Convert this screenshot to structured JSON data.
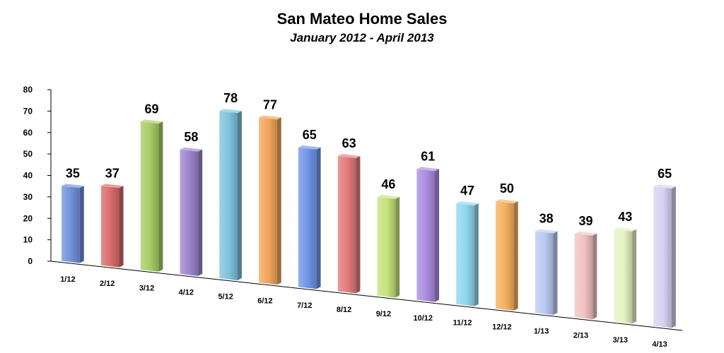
{
  "chart_data": {
    "type": "bar",
    "title": "San Mateo Home Sales",
    "subtitle": "January 2012 - April 2013",
    "xlabel": "",
    "ylabel": "",
    "ylim": [
      0,
      80
    ],
    "y_ticks": [
      "0",
      "10",
      "20",
      "30",
      "40",
      "50",
      "60",
      "70",
      "80"
    ],
    "categories": [
      "1/12",
      "2/12",
      "3/12",
      "4/12",
      "5/12",
      "6/12",
      "7/12",
      "8/12",
      "9/12",
      "10/12",
      "11/12",
      "12/12",
      "1/13",
      "2/13",
      "3/13",
      "4/13"
    ],
    "values": [
      35,
      37,
      69,
      58,
      78,
      77,
      65,
      63,
      46,
      61,
      47,
      50,
      38,
      39,
      43,
      65
    ],
    "grid": false,
    "legend": "none",
    "style": "3d-perspective",
    "colors": [
      "#6f8fd8",
      "#d86a6a",
      "#a6cc63",
      "#9c82cc",
      "#7cc2dc",
      "#f0a35a",
      "#6f93e6",
      "#e27a7a",
      "#c4e27a",
      "#a98be0",
      "#8fd6ee",
      "#f5b05e",
      "#b9c9f3",
      "#f1c1c1",
      "#e6f2c2",
      "#d7d1f2"
    ]
  }
}
